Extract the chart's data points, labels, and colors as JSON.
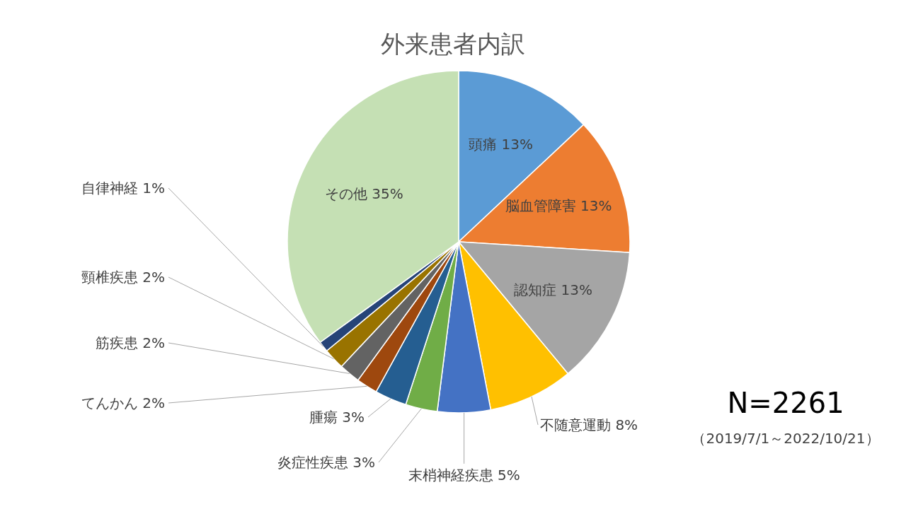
{
  "chart_data": {
    "type": "pie",
    "title": "外来患者内訳",
    "categories": [
      "頭痛",
      "脳血管障害",
      "認知症",
      "不随意運動",
      "末梢神経疾患",
      "炎症性疾患",
      "腫瘍",
      "てんかん",
      "筋疾患",
      "頸椎疾患",
      "自律神経",
      "その他"
    ],
    "values": [
      13,
      13,
      13,
      8,
      5,
      3,
      3,
      2,
      2,
      2,
      1,
      35
    ],
    "value_labels": [
      "13%",
      "13%",
      "13%",
      "8%",
      "5%",
      "3%",
      "3%",
      "2%",
      "2%",
      "2%",
      "1%",
      "35%"
    ],
    "colors": [
      "#5b9bd5",
      "#ed7d31",
      "#a5a5a5",
      "#ffc000",
      "#4472c4",
      "#70ad47",
      "#255e91",
      "#9e480e",
      "#636363",
      "#997300",
      "#264478",
      "#c5e0b4"
    ],
    "annotations": [
      "N=2261",
      "（2019/7/1～2022/10/21）"
    ]
  }
}
